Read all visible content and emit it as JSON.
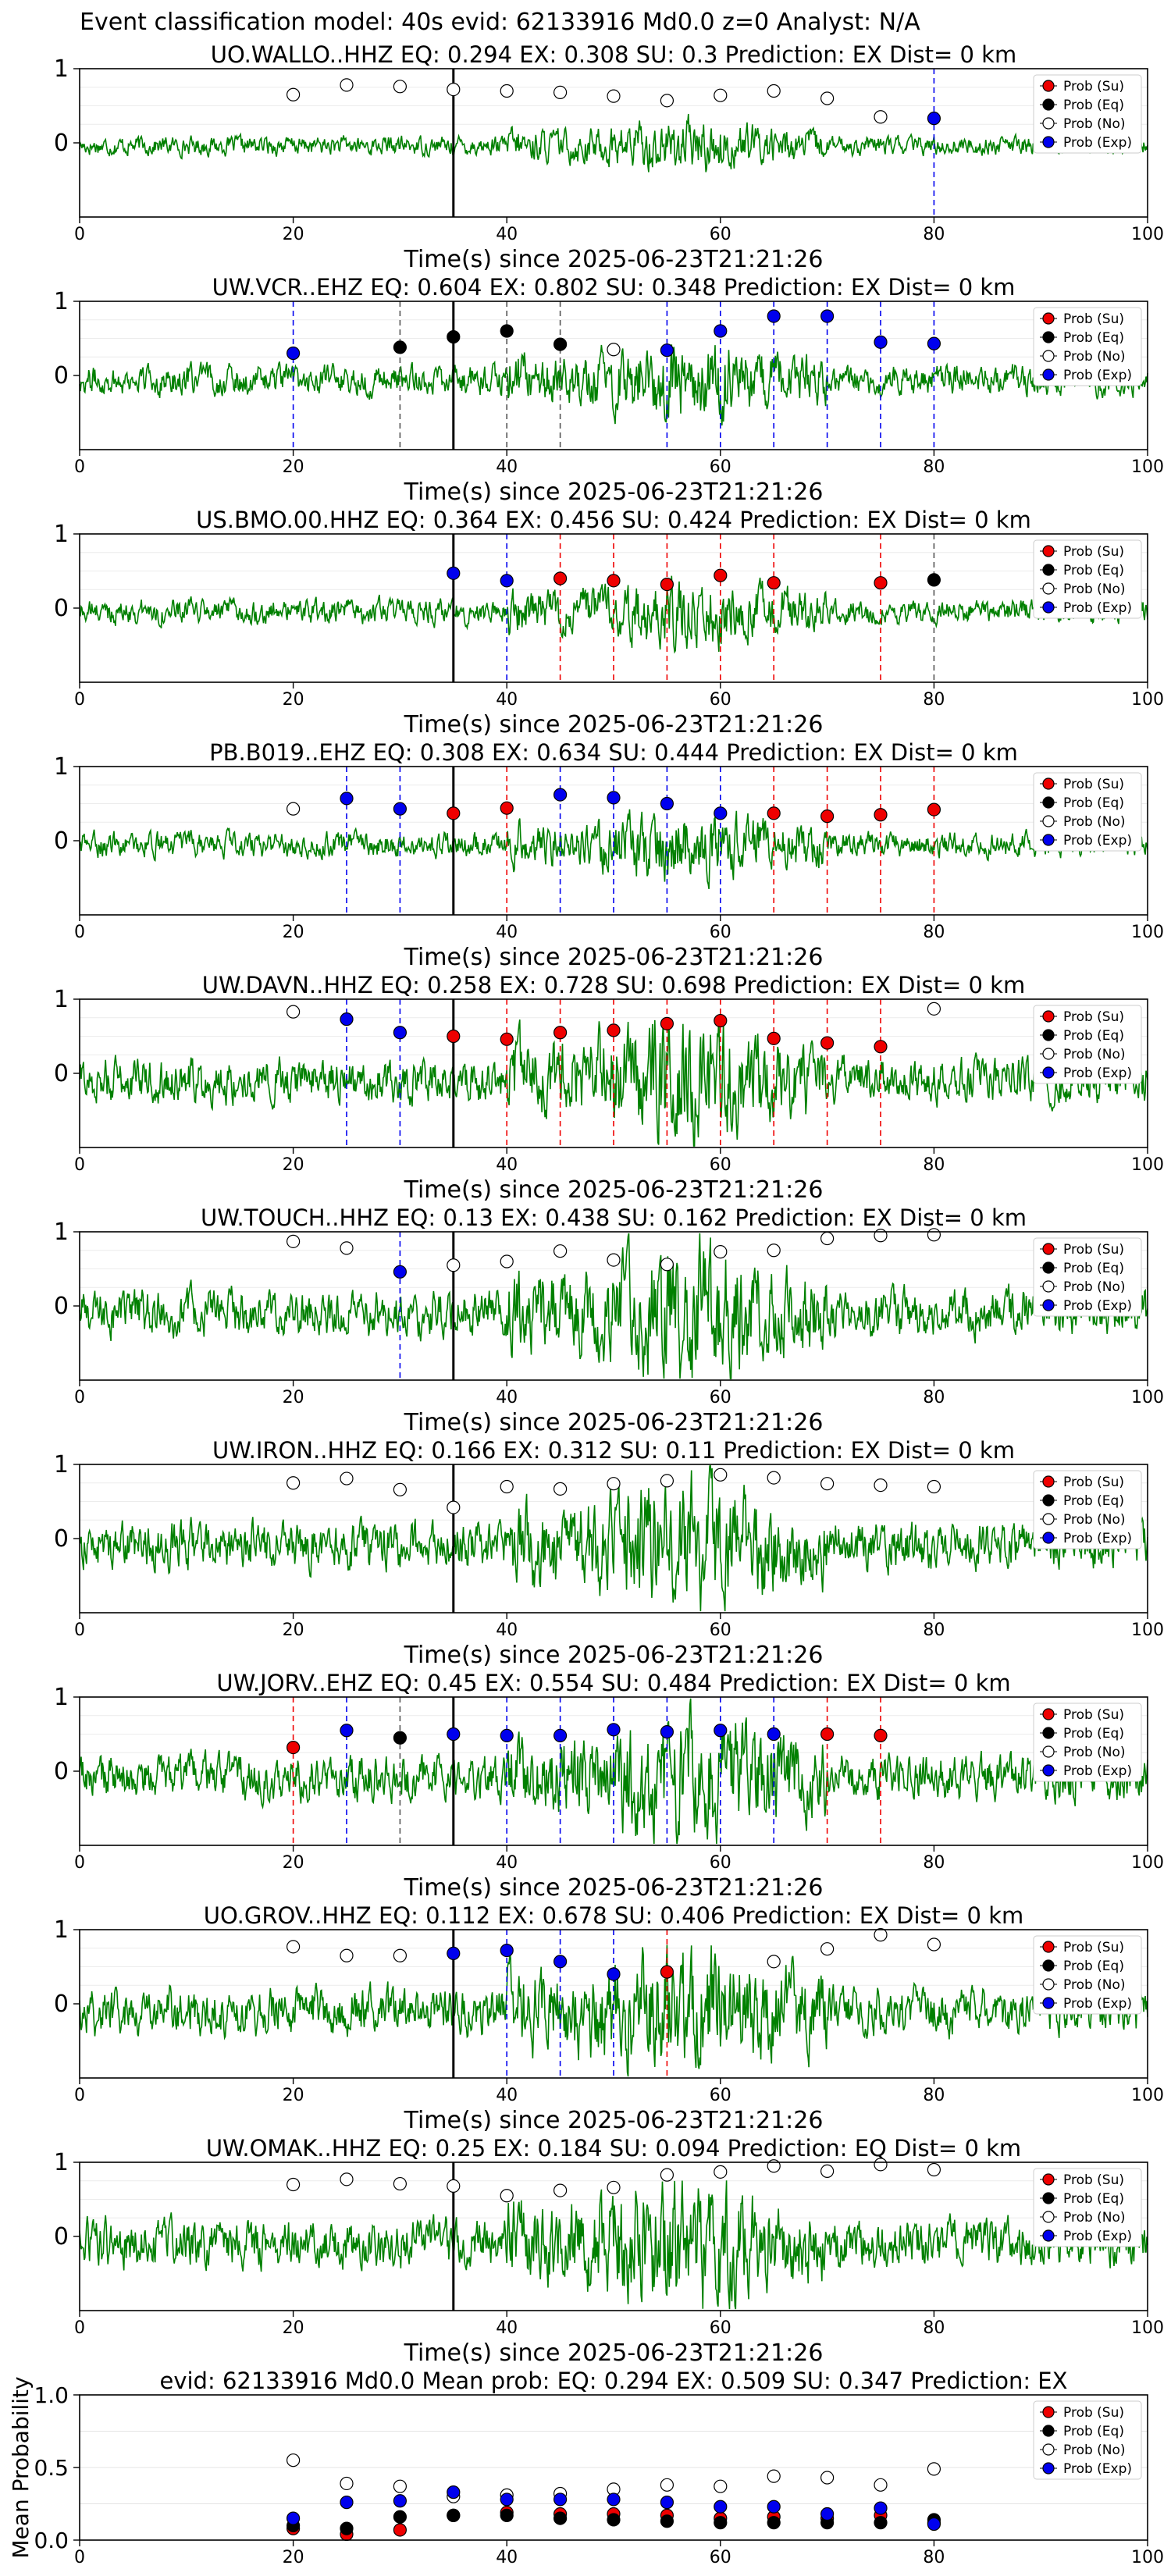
{
  "suptitle": "Event classification model: 40s evid: 62133916 Md0.0 z=0 Analyst: N/A",
  "xlabel": "Time(s) since 2025-06-23T21:21:26",
  "legend_labels": [
    "Prob (Su)",
    "Prob (Eq)",
    "Prob (No)",
    "Prob (Exp)"
  ],
  "colors": {
    "Su": "#ee0000",
    "Eq": "#000000",
    "No": "#ffffff",
    "Exp": "#0000ee",
    "waveform": "#008000",
    "arrival": "#000000"
  },
  "chart_data": [
    {
      "type": "line",
      "title": "UO.WALLO..HHZ   EQ: 0.294  EX: 0.308  SU: 0.3   Prediction: EX    Dist= 0 km",
      "xlim": [
        0,
        100
      ],
      "xticks": [
        0,
        20,
        40,
        60,
        80,
        100
      ],
      "yticks": [
        0,
        1
      ],
      "arrival_time": 35,
      "waveform_amplitude": 0.38,
      "windows": [
        {
          "t": 20,
          "class": "No",
          "p": 0.65
        },
        {
          "t": 25,
          "class": "No",
          "p": 0.78
        },
        {
          "t": 30,
          "class": "No",
          "p": 0.76
        },
        {
          "t": 35,
          "class": "No",
          "p": 0.72
        },
        {
          "t": 40,
          "class": "No",
          "p": 0.7
        },
        {
          "t": 45,
          "class": "No",
          "p": 0.68
        },
        {
          "t": 50,
          "class": "No",
          "p": 0.63
        },
        {
          "t": 55,
          "class": "No",
          "p": 0.57
        },
        {
          "t": 60,
          "class": "No",
          "p": 0.64
        },
        {
          "t": 65,
          "class": "No",
          "p": 0.7
        },
        {
          "t": 70,
          "class": "No",
          "p": 0.6
        },
        {
          "t": 75,
          "class": "No",
          "p": 0.35
        },
        {
          "t": 80,
          "class": "Exp",
          "p": 0.33
        }
      ]
    },
    {
      "type": "line",
      "title": "UW.VCR..EHZ   EQ: 0.604  EX: 0.802  SU: 0.348   Prediction: EX    Dist= 0 km",
      "xlim": [
        0,
        100
      ],
      "xticks": [
        0,
        20,
        40,
        60,
        80,
        100
      ],
      "yticks": [
        0,
        1
      ],
      "arrival_time": 35,
      "waveform_amplitude": 0.6,
      "windows": [
        {
          "t": 20,
          "class": "Exp",
          "p": 0.3
        },
        {
          "t": 30,
          "class": "Eq",
          "p": 0.38
        },
        {
          "t": 35,
          "class": "Eq",
          "p": 0.52
        },
        {
          "t": 40,
          "class": "Eq",
          "p": 0.6
        },
        {
          "t": 45,
          "class": "Eq",
          "p": 0.42
        },
        {
          "t": 50,
          "class": "No",
          "p": 0.35
        },
        {
          "t": 55,
          "class": "Exp",
          "p": 0.34
        },
        {
          "t": 60,
          "class": "Exp",
          "p": 0.6
        },
        {
          "t": 65,
          "class": "Exp",
          "p": 0.8
        },
        {
          "t": 70,
          "class": "Exp",
          "p": 0.8
        },
        {
          "t": 75,
          "class": "Exp",
          "p": 0.45
        },
        {
          "t": 80,
          "class": "Exp",
          "p": 0.43
        }
      ]
    },
    {
      "type": "line",
      "title": "US.BMO.00.HHZ   EQ: 0.364  EX: 0.456  SU: 0.424   Prediction: EX    Dist= 0 km",
      "xlim": [
        0,
        100
      ],
      "xticks": [
        0,
        20,
        40,
        60,
        80,
        100
      ],
      "yticks": [
        0,
        1
      ],
      "arrival_time": 35,
      "waveform_amplitude": 0.5,
      "windows": [
        {
          "t": 35,
          "class": "Exp",
          "p": 0.47
        },
        {
          "t": 40,
          "class": "Exp",
          "p": 0.37
        },
        {
          "t": 45,
          "class": "Su",
          "p": 0.4
        },
        {
          "t": 50,
          "class": "Su",
          "p": 0.37
        },
        {
          "t": 55,
          "class": "Su",
          "p": 0.32
        },
        {
          "t": 60,
          "class": "Su",
          "p": 0.44
        },
        {
          "t": 65,
          "class": "Su",
          "p": 0.34
        },
        {
          "t": 75,
          "class": "Su",
          "p": 0.34
        },
        {
          "t": 80,
          "class": "Eq",
          "p": 0.38
        }
      ]
    },
    {
      "type": "line",
      "title": "PB.B019..EHZ   EQ: 0.308  EX: 0.634  SU: 0.444   Prediction: EX    Dist= 0 km",
      "xlim": [
        0,
        100
      ],
      "xticks": [
        0,
        20,
        40,
        60,
        80,
        100
      ],
      "yticks": [
        0,
        1
      ],
      "arrival_time": 35,
      "waveform_amplitude": 0.5,
      "windows": [
        {
          "t": 20,
          "class": "No",
          "p": 0.43
        },
        {
          "t": 25,
          "class": "Exp",
          "p": 0.57
        },
        {
          "t": 30,
          "class": "Exp",
          "p": 0.43
        },
        {
          "t": 35,
          "class": "Su",
          "p": 0.37
        },
        {
          "t": 40,
          "class": "Su",
          "p": 0.44
        },
        {
          "t": 45,
          "class": "Exp",
          "p": 0.62
        },
        {
          "t": 50,
          "class": "Exp",
          "p": 0.58
        },
        {
          "t": 55,
          "class": "Exp",
          "p": 0.5
        },
        {
          "t": 60,
          "class": "Exp",
          "p": 0.37
        },
        {
          "t": 65,
          "class": "Su",
          "p": 0.37
        },
        {
          "t": 70,
          "class": "Su",
          "p": 0.33
        },
        {
          "t": 75,
          "class": "Su",
          "p": 0.35
        },
        {
          "t": 80,
          "class": "Su",
          "p": 0.42
        }
      ]
    },
    {
      "type": "line",
      "title": "UW.DAVN..HHZ   EQ: 0.258  EX: 0.728  SU: 0.698   Prediction: EX    Dist= 0 km",
      "xlim": [
        0,
        100
      ],
      "xticks": [
        0,
        20,
        40,
        60,
        80,
        100
      ],
      "yticks": [
        0,
        1
      ],
      "arrival_time": 35,
      "waveform_amplitude": 0.9,
      "windows": [
        {
          "t": 20,
          "class": "No",
          "p": 0.83
        },
        {
          "t": 25,
          "class": "Exp",
          "p": 0.73
        },
        {
          "t": 30,
          "class": "Exp",
          "p": 0.55
        },
        {
          "t": 35,
          "class": "Su",
          "p": 0.5
        },
        {
          "t": 40,
          "class": "Su",
          "p": 0.46
        },
        {
          "t": 45,
          "class": "Su",
          "p": 0.55
        },
        {
          "t": 50,
          "class": "Su",
          "p": 0.58
        },
        {
          "t": 55,
          "class": "Su",
          "p": 0.67
        },
        {
          "t": 60,
          "class": "Su",
          "p": 0.71
        },
        {
          "t": 65,
          "class": "Su",
          "p": 0.47
        },
        {
          "t": 70,
          "class": "Su",
          "p": 0.41
        },
        {
          "t": 75,
          "class": "Su",
          "p": 0.36
        },
        {
          "t": 80,
          "class": "No",
          "p": 0.87
        }
      ]
    },
    {
      "type": "line",
      "title": "UW.TOUCH..HHZ   EQ: 0.13  EX: 0.438  SU: 0.162   Prediction: EX    Dist= 0 km",
      "xlim": [
        0,
        100
      ],
      "xticks": [
        0,
        20,
        40,
        60,
        80,
        100
      ],
      "yticks": [
        0,
        1
      ],
      "arrival_time": 35,
      "waveform_amplitude": 0.95,
      "windows": [
        {
          "t": 20,
          "class": "No",
          "p": 0.87
        },
        {
          "t": 25,
          "class": "No",
          "p": 0.78
        },
        {
          "t": 30,
          "class": "Exp",
          "p": 0.46
        },
        {
          "t": 35,
          "class": "No",
          "p": 0.55
        },
        {
          "t": 40,
          "class": "No",
          "p": 0.6
        },
        {
          "t": 45,
          "class": "No",
          "p": 0.74
        },
        {
          "t": 50,
          "class": "No",
          "p": 0.62
        },
        {
          "t": 55,
          "class": "No",
          "p": 0.56
        },
        {
          "t": 60,
          "class": "No",
          "p": 0.73
        },
        {
          "t": 65,
          "class": "No",
          "p": 0.75
        },
        {
          "t": 70,
          "class": "No",
          "p": 0.91
        },
        {
          "t": 75,
          "class": "No",
          "p": 0.95
        },
        {
          "t": 80,
          "class": "No",
          "p": 0.96
        }
      ]
    },
    {
      "type": "line",
      "title": "UW.IRON..HHZ   EQ: 0.166  EX: 0.312  SU: 0.11   Prediction: EX    Dist= 0 km",
      "xlim": [
        0,
        100
      ],
      "xticks": [
        0,
        20,
        40,
        60,
        80,
        100
      ],
      "yticks": [
        0,
        1
      ],
      "arrival_time": 35,
      "waveform_amplitude": 0.95,
      "windows": [
        {
          "t": 20,
          "class": "No",
          "p": 0.75
        },
        {
          "t": 25,
          "class": "No",
          "p": 0.81
        },
        {
          "t": 30,
          "class": "No",
          "p": 0.66
        },
        {
          "t": 35,
          "class": "No",
          "p": 0.42
        },
        {
          "t": 40,
          "class": "No",
          "p": 0.7
        },
        {
          "t": 45,
          "class": "No",
          "p": 0.67
        },
        {
          "t": 50,
          "class": "No",
          "p": 0.74
        },
        {
          "t": 55,
          "class": "No",
          "p": 0.78
        },
        {
          "t": 60,
          "class": "No",
          "p": 0.86
        },
        {
          "t": 65,
          "class": "No",
          "p": 0.82
        },
        {
          "t": 70,
          "class": "No",
          "p": 0.74
        },
        {
          "t": 75,
          "class": "No",
          "p": 0.72
        },
        {
          "t": 80,
          "class": "No",
          "p": 0.7
        }
      ]
    },
    {
      "type": "line",
      "title": "UW.JORV..EHZ   EQ: 0.45  EX: 0.554  SU: 0.484   Prediction: EX    Dist= 0 km",
      "xlim": [
        0,
        100
      ],
      "xticks": [
        0,
        20,
        40,
        60,
        80,
        100
      ],
      "yticks": [
        0,
        1
      ],
      "arrival_time": 35,
      "waveform_amplitude": 0.9,
      "windows": [
        {
          "t": 20,
          "class": "Su",
          "p": 0.32
        },
        {
          "t": 25,
          "class": "Exp",
          "p": 0.55
        },
        {
          "t": 30,
          "class": "Eq",
          "p": 0.45
        },
        {
          "t": 35,
          "class": "Exp",
          "p": 0.5
        },
        {
          "t": 40,
          "class": "Exp",
          "p": 0.48
        },
        {
          "t": 45,
          "class": "Exp",
          "p": 0.48
        },
        {
          "t": 50,
          "class": "Exp",
          "p": 0.56
        },
        {
          "t": 55,
          "class": "Exp",
          "p": 0.53
        },
        {
          "t": 60,
          "class": "Exp",
          "p": 0.55
        },
        {
          "t": 65,
          "class": "Exp",
          "p": 0.5
        },
        {
          "t": 70,
          "class": "Su",
          "p": 0.5
        },
        {
          "t": 75,
          "class": "Su",
          "p": 0.48
        }
      ]
    },
    {
      "type": "line",
      "title": "UO.GROV..HHZ   EQ: 0.112  EX: 0.678  SU: 0.406   Prediction: EX    Dist= 0 km",
      "xlim": [
        0,
        100
      ],
      "xticks": [
        0,
        20,
        40,
        60,
        80,
        100
      ],
      "yticks": [
        0,
        1
      ],
      "arrival_time": 35,
      "waveform_amplitude": 0.95,
      "windows": [
        {
          "t": 20,
          "class": "No",
          "p": 0.77
        },
        {
          "t": 25,
          "class": "No",
          "p": 0.65
        },
        {
          "t": 30,
          "class": "No",
          "p": 0.65
        },
        {
          "t": 35,
          "class": "Exp",
          "p": 0.68
        },
        {
          "t": 40,
          "class": "Exp",
          "p": 0.72
        },
        {
          "t": 45,
          "class": "Exp",
          "p": 0.57
        },
        {
          "t": 50,
          "class": "Exp",
          "p": 0.4
        },
        {
          "t": 55,
          "class": "Su",
          "p": 0.43
        },
        {
          "t": 65,
          "class": "No",
          "p": 0.57
        },
        {
          "t": 70,
          "class": "No",
          "p": 0.74
        },
        {
          "t": 75,
          "class": "No",
          "p": 0.93
        },
        {
          "t": 80,
          "class": "No",
          "p": 0.8
        }
      ]
    },
    {
      "type": "line",
      "title": "UW.OMAK..HHZ   EQ: 0.25  EX: 0.184  SU: 0.094   Prediction: EQ    Dist= 0 km",
      "xlim": [
        0,
        100
      ],
      "xticks": [
        0,
        20,
        40,
        60,
        80,
        100
      ],
      "yticks": [
        0,
        1
      ],
      "arrival_time": 35,
      "waveform_amplitude": 0.95,
      "windows": [
        {
          "t": 20,
          "class": "No",
          "p": 0.7
        },
        {
          "t": 25,
          "class": "No",
          "p": 0.77
        },
        {
          "t": 30,
          "class": "No",
          "p": 0.71
        },
        {
          "t": 35,
          "class": "No",
          "p": 0.68
        },
        {
          "t": 40,
          "class": "No",
          "p": 0.55
        },
        {
          "t": 45,
          "class": "No",
          "p": 0.62
        },
        {
          "t": 50,
          "class": "No",
          "p": 0.66
        },
        {
          "t": 55,
          "class": "No",
          "p": 0.83
        },
        {
          "t": 60,
          "class": "No",
          "p": 0.87
        },
        {
          "t": 65,
          "class": "No",
          "p": 0.95
        },
        {
          "t": 70,
          "class": "No",
          "p": 0.88
        },
        {
          "t": 75,
          "class": "No",
          "p": 0.97
        },
        {
          "t": 80,
          "class": "No",
          "p": 0.9
        }
      ]
    },
    {
      "type": "scatter",
      "title": "evid: 62133916  Md0.0   Mean prob:    EQ: 0.294  EX: 0.509  SU: 0.347   Prediction: EX",
      "ylabel": "Mean Probability",
      "xlim": [
        0,
        100
      ],
      "ylim": [
        0,
        1
      ],
      "xticks": [
        0,
        20,
        40,
        60,
        80,
        100
      ],
      "yticks": [
        0.0,
        0.5,
        1.0
      ],
      "x": [
        20,
        25,
        30,
        35,
        40,
        45,
        50,
        55,
        60,
        65,
        70,
        75,
        80
      ],
      "series": [
        {
          "name": "Prob (Su)",
          "values": [
            0.08,
            0.04,
            0.07,
            0.17,
            0.19,
            0.18,
            0.18,
            0.17,
            0.15,
            0.16,
            0.15,
            0.17,
            0.12
          ]
        },
        {
          "name": "Prob (Eq)",
          "values": [
            0.1,
            0.08,
            0.16,
            0.17,
            0.17,
            0.15,
            0.14,
            0.13,
            0.12,
            0.12,
            0.12,
            0.12,
            0.14
          ]
        },
        {
          "name": "Prob (No)",
          "values": [
            0.55,
            0.39,
            0.37,
            0.3,
            0.31,
            0.32,
            0.35,
            0.38,
            0.37,
            0.44,
            0.43,
            0.38,
            0.49
          ]
        },
        {
          "name": "Prob (Exp)",
          "values": [
            0.15,
            0.26,
            0.27,
            0.33,
            0.28,
            0.28,
            0.28,
            0.26,
            0.23,
            0.23,
            0.18,
            0.22,
            0.11
          ]
        }
      ]
    }
  ]
}
